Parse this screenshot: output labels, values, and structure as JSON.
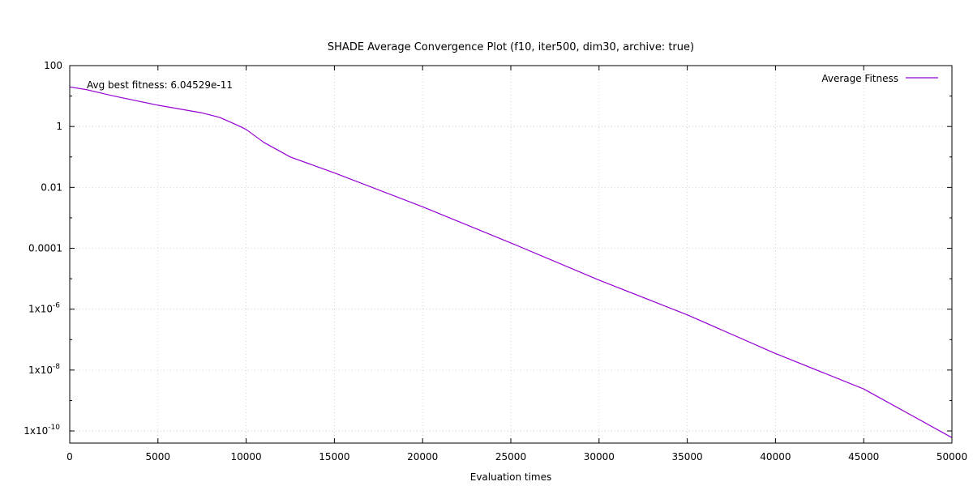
{
  "chart_data": {
    "type": "line",
    "title": "SHADE Average Convergence Plot (f10, iter500, dim30, archive: true)",
    "xlabel": "Evaluation times",
    "ylabel": "",
    "xlim": [
      0,
      50000
    ],
    "ylim": [
      4e-11,
      100
    ],
    "yscale": "log",
    "grid": true,
    "legend_position": "top-right",
    "annotation": "Avg best fitness: 6.04529e-11",
    "x_ticks": [
      {
        "value": 0,
        "label": "0"
      },
      {
        "value": 5000,
        "label": "5000"
      },
      {
        "value": 10000,
        "label": "10000"
      },
      {
        "value": 15000,
        "label": "15000"
      },
      {
        "value": 20000,
        "label": "20000"
      },
      {
        "value": 25000,
        "label": "25000"
      },
      {
        "value": 30000,
        "label": "30000"
      },
      {
        "value": 35000,
        "label": "35000"
      },
      {
        "value": 40000,
        "label": "40000"
      },
      {
        "value": 45000,
        "label": "45000"
      },
      {
        "value": 50000,
        "label": "50000"
      }
    ],
    "y_ticks": [
      {
        "value": 100,
        "label": "100",
        "exp": ""
      },
      {
        "value": 1,
        "label": "1",
        "exp": ""
      },
      {
        "value": 0.01,
        "label": "0.01",
        "exp": ""
      },
      {
        "value": 0.0001,
        "label": "0.0001",
        "exp": ""
      },
      {
        "value": 1e-06,
        "label": "1x10",
        "exp": "-6"
      },
      {
        "value": 1e-08,
        "label": "1x10",
        "exp": "-8"
      },
      {
        "value": 1e-10,
        "label": "1x10",
        "exp": "-10"
      }
    ],
    "series": [
      {
        "name": "Average Fitness",
        "color": "#9400d3",
        "x": [
          0,
          1000,
          2500,
          5000,
          7500,
          8500,
          9500,
          10000,
          11000,
          12500,
          15000,
          20000,
          25000,
          30000,
          35000,
          40000,
          45000,
          50000
        ],
        "y": [
          20,
          16,
          10,
          5,
          2.8,
          2,
          1.1,
          0.8,
          0.3,
          0.1,
          0.03,
          0.0023,
          0.00015,
          9e-06,
          6.5e-07,
          3.5e-08,
          2.4e-09,
          6.04529e-11
        ]
      }
    ]
  }
}
